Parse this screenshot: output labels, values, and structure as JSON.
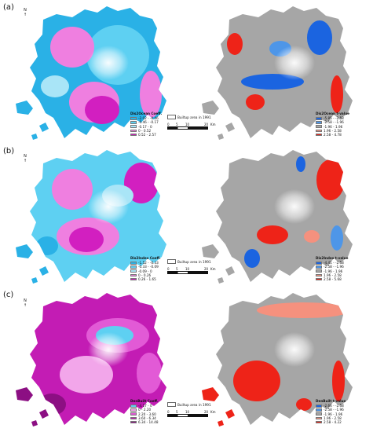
{
  "panels": [
    {
      "label": "(a)",
      "coef_legend": {
        "title": "Dis2Ocean Coeff.",
        "classes": [
          {
            "range": "-2.02 - -0.46",
            "color": "#2ab1e6"
          },
          {
            "range": "-0.46 - -0.17",
            "color": "#5ed0f2"
          },
          {
            "range": "-0.17 - 0",
            "color": "#a9e5f7"
          },
          {
            "range": "0 - 0.52",
            "color": "#ef7fe0"
          },
          {
            "range": "0.52 - 2.57",
            "color": "#d21fc0"
          }
        ]
      },
      "t_legend": {
        "title": "Dis2Ocean t-value",
        "classes": [
          {
            "range": "-5.85 - -2.58",
            "color": "#1b64e0"
          },
          {
            "range": "-2.58 - -1.96",
            "color": "#4e96e8"
          },
          {
            "range": "-1.96 - 1.96",
            "color": "#a6a6a6"
          },
          {
            "range": "1.96 - 2.58",
            "color": "#f5917e"
          },
          {
            "range": "2.58 - 4.78",
            "color": "#ee2318"
          }
        ]
      }
    },
    {
      "label": "(b)",
      "coef_legend": {
        "title": "Dis2Index Coeff.",
        "classes": [
          {
            "range": "-1.52 - -0.33",
            "color": "#2ab1e6"
          },
          {
            "range": "-0.33 - -0.09",
            "color": "#5ed0f2"
          },
          {
            "range": "-0.09 - 0",
            "color": "#a9e5f7"
          },
          {
            "range": "0 - 0.26",
            "color": "#ef7fe0"
          },
          {
            "range": "0.26 - 1.65",
            "color": "#d21fc0"
          }
        ]
      },
      "t_legend": {
        "title": "Dis2Index t-value",
        "classes": [
          {
            "range": "-4.41 - -2.58",
            "color": "#1b64e0"
          },
          {
            "range": "-2.58 - -1.96",
            "color": "#4e96e8"
          },
          {
            "range": "-1.96 - 1.96",
            "color": "#a6a6a6"
          },
          {
            "range": "1.96 - 2.58",
            "color": "#f5917e"
          },
          {
            "range": "2.58 - 5.68",
            "color": "#ee2318"
          }
        ]
      }
    },
    {
      "label": "(c)",
      "coef_legend": {
        "title": "DenBuilt Coeff.",
        "classes": [
          {
            "range": "-4.17 - 0",
            "color": "#5ed0f2"
          },
          {
            "range": "0 - 2.20",
            "color": "#f2a6ea"
          },
          {
            "range": "2.20 - 3.60",
            "color": "#e25ad6"
          },
          {
            "range": "3.60 - 6.34",
            "color": "#c31cb4"
          },
          {
            "range": "6.34 - 14.48",
            "color": "#8c0f83"
          }
        ]
      },
      "t_legend": {
        "title": "DenBuilt t-value",
        "classes": [
          {
            "range": "-2.66 - -2.58",
            "color": "#1b64e0"
          },
          {
            "range": "-2.58 - -1.96",
            "color": "#4e96e8"
          },
          {
            "range": "-1.96 - 1.96",
            "color": "#a6a6a6"
          },
          {
            "range": "1.96 - 2.58",
            "color": "#f5917e"
          },
          {
            "range": "2.58 - 4.22",
            "color": "#ee2318"
          }
        ]
      }
    }
  ],
  "builtup_key": "Builtup area in 1991",
  "scale": {
    "ticks": [
      "0",
      "5",
      "10",
      "20"
    ],
    "unit": "Km"
  },
  "north": "N"
}
